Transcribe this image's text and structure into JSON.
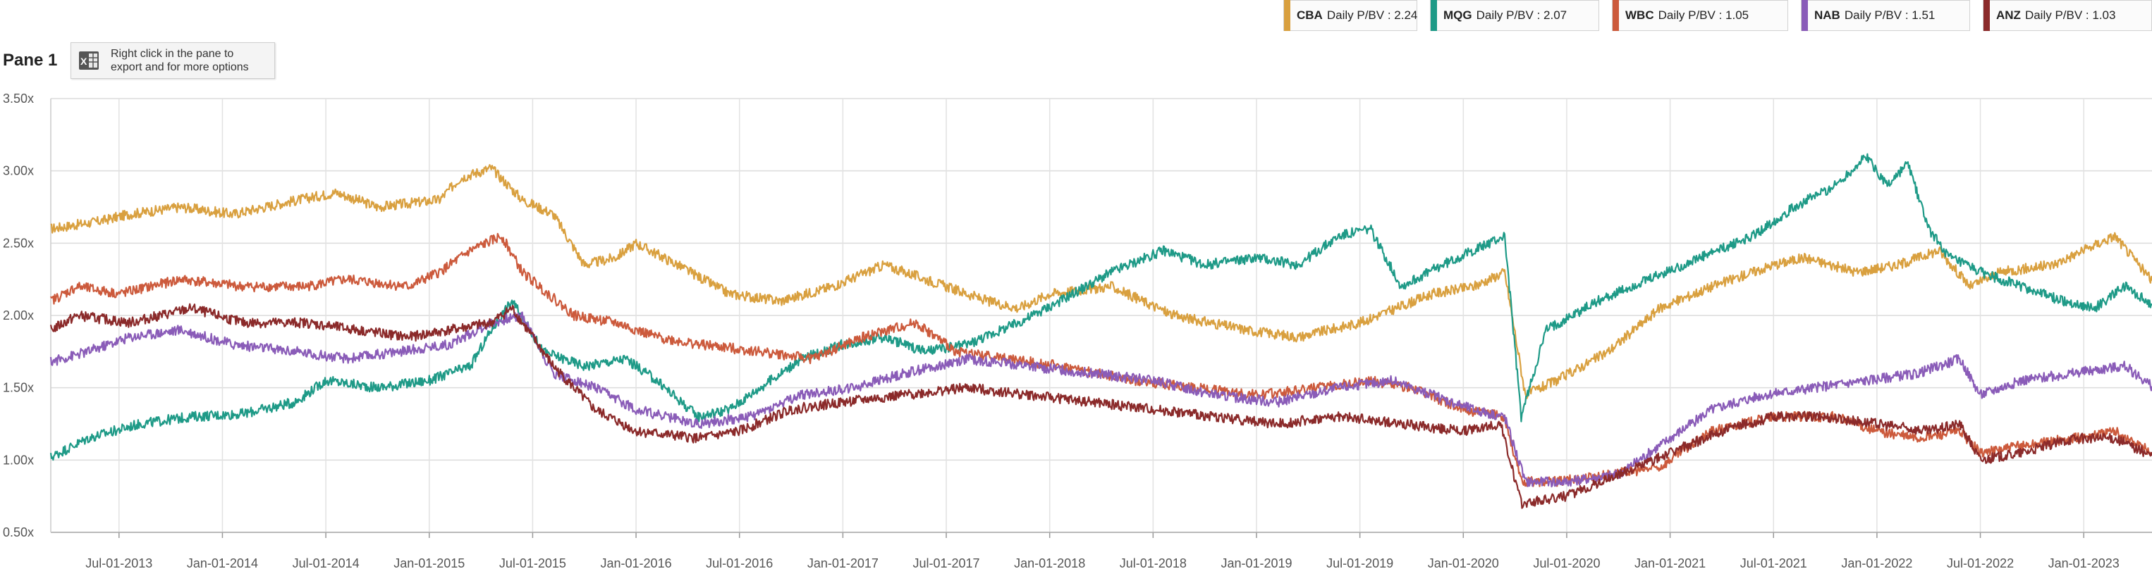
{
  "pane": {
    "title": "Pane 1"
  },
  "export_hint": {
    "icon": "excel-icon",
    "text": "Right click in the pane to\nexport and for more options"
  },
  "legend": [
    {
      "code": "CBA",
      "label": "Daily P/BV : 2.24",
      "color": "#d9a03f"
    },
    {
      "code": "MQG",
      "label": "Daily P/BV : 2.07",
      "color": "#1e9a87"
    },
    {
      "code": "WBC",
      "label": "Daily P/BV : 1.05",
      "color": "#cc5a3c"
    },
    {
      "code": "NAB",
      "label": "Daily P/BV : 1.51",
      "color": "#8a5cb8"
    },
    {
      "code": "ANZ",
      "label": "Daily P/BV : 1.03",
      "color": "#8b2a2a"
    }
  ],
  "chart_data": {
    "type": "line",
    "title": "Pane 1",
    "xlabel": "",
    "ylabel": "",
    "x_range": [
      2013.17,
      2023.33
    ],
    "ylim": [
      0.5,
      3.5
    ],
    "y_ticks": [
      "0.50x",
      "1.00x",
      "1.50x",
      "2.00x",
      "2.50x",
      "3.00x",
      "3.50x"
    ],
    "y_tick_values": [
      0.5,
      1.0,
      1.5,
      2.0,
      2.5,
      3.0,
      3.5
    ],
    "x_ticks": [
      "Jul-01-2013",
      "Jan-01-2014",
      "Jul-01-2014",
      "Jan-01-2015",
      "Jul-01-2015",
      "Jan-01-2016",
      "Jul-01-2016",
      "Jan-01-2017",
      "Jul-01-2017",
      "Jan-01-2018",
      "Jul-01-2018",
      "Jan-01-2019",
      "Jul-01-2019",
      "Jan-01-2020",
      "Jul-01-2020",
      "Jan-01-2021",
      "Jul-01-2021",
      "Jan-01-2022",
      "Jul-01-2022",
      "Jan-01-2023"
    ],
    "x_tick_values": [
      2013.5,
      2014.0,
      2014.5,
      2015.0,
      2015.5,
      2016.0,
      2016.5,
      2017.0,
      2017.5,
      2018.0,
      2018.5,
      2019.0,
      2019.5,
      2020.0,
      2020.5,
      2021.0,
      2021.5,
      2022.0,
      2022.5,
      2023.0
    ],
    "grid": true,
    "series": [
      {
        "name": "CBA Daily P/BV",
        "color": "#d9a03f",
        "x": [
          2013.17,
          2013.4,
          2013.55,
          2013.8,
          2014.05,
          2014.3,
          2014.55,
          2014.75,
          2015.05,
          2015.15,
          2015.3,
          2015.45,
          2015.6,
          2015.75,
          2015.9,
          2016.0,
          2016.2,
          2016.45,
          2016.7,
          2016.95,
          2017.2,
          2017.5,
          2017.7,
          2017.85,
          2018.0,
          2018.3,
          2018.6,
          2018.95,
          2019.2,
          2019.5,
          2019.85,
          2020.05,
          2020.2,
          2020.3,
          2020.45,
          2020.7,
          2020.95,
          2021.2,
          2021.5,
          2021.65,
          2021.9,
          2022.1,
          2022.3,
          2022.45,
          2022.6,
          2022.85,
          2023.0,
          2023.15,
          2023.33
        ],
        "y": [
          2.6,
          2.65,
          2.7,
          2.75,
          2.7,
          2.78,
          2.85,
          2.75,
          2.8,
          2.95,
          3.02,
          2.8,
          2.7,
          2.35,
          2.4,
          2.5,
          2.35,
          2.15,
          2.1,
          2.2,
          2.35,
          2.2,
          2.1,
          2.05,
          2.15,
          2.2,
          2.0,
          1.9,
          1.85,
          1.95,
          2.15,
          2.2,
          2.3,
          1.45,
          1.55,
          1.75,
          2.05,
          2.2,
          2.35,
          2.4,
          2.3,
          2.35,
          2.45,
          2.2,
          2.3,
          2.35,
          2.45,
          2.55,
          2.24
        ]
      },
      {
        "name": "MQG Daily P/BV",
        "color": "#1e9a87",
        "x": [
          2013.17,
          2013.35,
          2013.6,
          2013.85,
          2014.1,
          2014.35,
          2014.5,
          2014.75,
          2015.0,
          2015.2,
          2015.3,
          2015.4,
          2015.55,
          2015.75,
          2015.95,
          2016.1,
          2016.3,
          2016.45,
          2016.6,
          2016.8,
          2017.0,
          2017.2,
          2017.4,
          2017.6,
          2017.85,
          2018.05,
          2018.3,
          2018.55,
          2018.75,
          2019.0,
          2019.2,
          2019.4,
          2019.55,
          2019.7,
          2019.9,
          2020.05,
          2020.2,
          2020.28,
          2020.4,
          2020.65,
          2020.9,
          2021.15,
          2021.4,
          2021.6,
          2021.8,
          2021.95,
          2022.05,
          2022.15,
          2022.25,
          2022.35,
          2022.5,
          2022.7,
          2022.9,
          2023.05,
          2023.2,
          2023.33
        ],
        "y": [
          1.02,
          1.15,
          1.25,
          1.3,
          1.32,
          1.4,
          1.55,
          1.5,
          1.55,
          1.65,
          1.9,
          2.1,
          1.75,
          1.65,
          1.7,
          1.55,
          1.3,
          1.35,
          1.5,
          1.7,
          1.8,
          1.85,
          1.75,
          1.8,
          1.95,
          2.1,
          2.3,
          2.45,
          2.35,
          2.4,
          2.35,
          2.55,
          2.6,
          2.2,
          2.35,
          2.45,
          2.55,
          1.3,
          1.9,
          2.1,
          2.25,
          2.4,
          2.55,
          2.75,
          2.9,
          3.1,
          2.9,
          3.05,
          2.6,
          2.4,
          2.3,
          2.2,
          2.1,
          2.05,
          2.2,
          2.07
        ]
      },
      {
        "name": "WBC Daily P/BV",
        "color": "#cc5a3c",
        "x": [
          2013.17,
          2013.3,
          2013.5,
          2013.8,
          2014.1,
          2014.4,
          2014.6,
          2014.9,
          2015.05,
          2015.2,
          2015.35,
          2015.45,
          2015.7,
          2015.9,
          2016.1,
          2016.3,
          2016.6,
          2016.85,
          2017.1,
          2017.35,
          2017.55,
          2017.8,
          2018.05,
          2018.4,
          2018.7,
          2019.0,
          2019.3,
          2019.55,
          2019.75,
          2020.0,
          2020.2,
          2020.28,
          2020.45,
          2020.7,
          2020.95,
          2021.2,
          2021.5,
          2021.8,
          2022.0,
          2022.2,
          2022.4,
          2022.5,
          2022.7,
          2022.95,
          2023.15,
          2023.33
        ],
        "y": [
          2.1,
          2.2,
          2.15,
          2.25,
          2.2,
          2.2,
          2.25,
          2.2,
          2.3,
          2.45,
          2.55,
          2.3,
          2.0,
          1.95,
          1.85,
          1.8,
          1.75,
          1.7,
          1.85,
          1.95,
          1.75,
          1.7,
          1.65,
          1.55,
          1.5,
          1.45,
          1.5,
          1.55,
          1.5,
          1.35,
          1.3,
          0.85,
          0.85,
          0.9,
          0.95,
          1.2,
          1.3,
          1.3,
          1.2,
          1.15,
          1.2,
          1.05,
          1.1,
          1.15,
          1.2,
          1.05
        ]
      },
      {
        "name": "NAB Daily P/BV",
        "color": "#8a5cb8",
        "x": [
          2013.17,
          2013.35,
          2013.55,
          2013.8,
          2014.05,
          2014.35,
          2014.6,
          2014.85,
          2015.1,
          2015.3,
          2015.45,
          2015.6,
          2015.8,
          2016.0,
          2016.3,
          2016.55,
          2016.8,
          2017.05,
          2017.3,
          2017.6,
          2017.9,
          2018.2,
          2018.5,
          2018.8,
          2019.1,
          2019.4,
          2019.65,
          2019.85,
          2020.05,
          2020.2,
          2020.3,
          2020.5,
          2020.75,
          2020.95,
          2021.2,
          2021.45,
          2021.7,
          2021.95,
          2022.2,
          2022.4,
          2022.5,
          2022.7,
          2022.95,
          2023.2,
          2023.33
        ],
        "y": [
          1.68,
          1.75,
          1.85,
          1.9,
          1.8,
          1.75,
          1.7,
          1.75,
          1.8,
          1.95,
          2.0,
          1.6,
          1.5,
          1.35,
          1.25,
          1.3,
          1.45,
          1.5,
          1.6,
          1.7,
          1.65,
          1.6,
          1.55,
          1.45,
          1.4,
          1.5,
          1.55,
          1.45,
          1.35,
          1.3,
          0.85,
          0.85,
          0.9,
          1.1,
          1.35,
          1.45,
          1.5,
          1.55,
          1.6,
          1.7,
          1.45,
          1.55,
          1.6,
          1.65,
          1.51
        ]
      },
      {
        "name": "ANZ Daily P/BV",
        "color": "#8b2a2a",
        "x": [
          2013.17,
          2013.3,
          2013.55,
          2013.85,
          2014.1,
          2014.4,
          2014.65,
          2014.9,
          2015.1,
          2015.3,
          2015.4,
          2015.6,
          2015.8,
          2016.0,
          2016.3,
          2016.5,
          2016.75,
          2017.0,
          2017.3,
          2017.6,
          2017.9,
          2018.2,
          2018.5,
          2018.8,
          2019.1,
          2019.4,
          2019.7,
          2020.0,
          2020.18,
          2020.28,
          2020.5,
          2020.75,
          2021.0,
          2021.25,
          2021.5,
          2021.75,
          2022.0,
          2022.25,
          2022.4,
          2022.5,
          2022.7,
          2022.95,
          2023.15,
          2023.33
        ],
        "y": [
          1.9,
          2.0,
          1.95,
          2.05,
          1.95,
          1.95,
          1.9,
          1.85,
          1.9,
          1.95,
          2.05,
          1.65,
          1.35,
          1.2,
          1.15,
          1.2,
          1.35,
          1.4,
          1.45,
          1.5,
          1.45,
          1.4,
          1.35,
          1.3,
          1.25,
          1.3,
          1.25,
          1.2,
          1.25,
          0.7,
          0.75,
          0.9,
          1.05,
          1.2,
          1.3,
          1.3,
          1.25,
          1.2,
          1.25,
          1.0,
          1.05,
          1.15,
          1.15,
          1.03
        ]
      }
    ]
  }
}
